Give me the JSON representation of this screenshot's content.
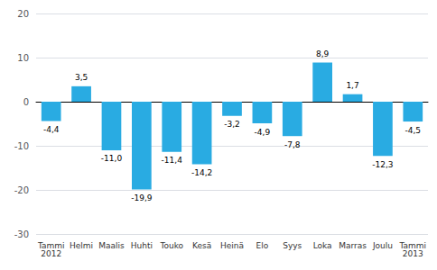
{
  "chart_data": {
    "type": "bar",
    "categories": [
      "Tammi\n2012",
      "Helmi",
      "Maalis",
      "Huhti",
      "Touko",
      "Kesä",
      "Heinä",
      "Elo",
      "Syys",
      "Loka",
      "Marras",
      "Joulu",
      "Tammi\n2013"
    ],
    "values": [
      -4.4,
      3.5,
      -11.0,
      -19.9,
      -11.4,
      -14.2,
      -3.2,
      -4.9,
      -7.8,
      8.9,
      1.7,
      -12.3,
      -4.5
    ],
    "value_labels": [
      "-4,4",
      "3,5",
      "-11,0",
      "-19,9",
      "-11,4",
      "-14,2",
      "-3,2",
      "-4,9",
      "-7,8",
      "8,9",
      "1,7",
      "-12,3",
      "-4,5"
    ],
    "data_labels": true,
    "color": "#29ABE2",
    "ylim": [
      -30,
      20
    ],
    "yticks": [
      -30,
      -20,
      -10,
      0,
      10,
      20
    ],
    "grid": true
  }
}
